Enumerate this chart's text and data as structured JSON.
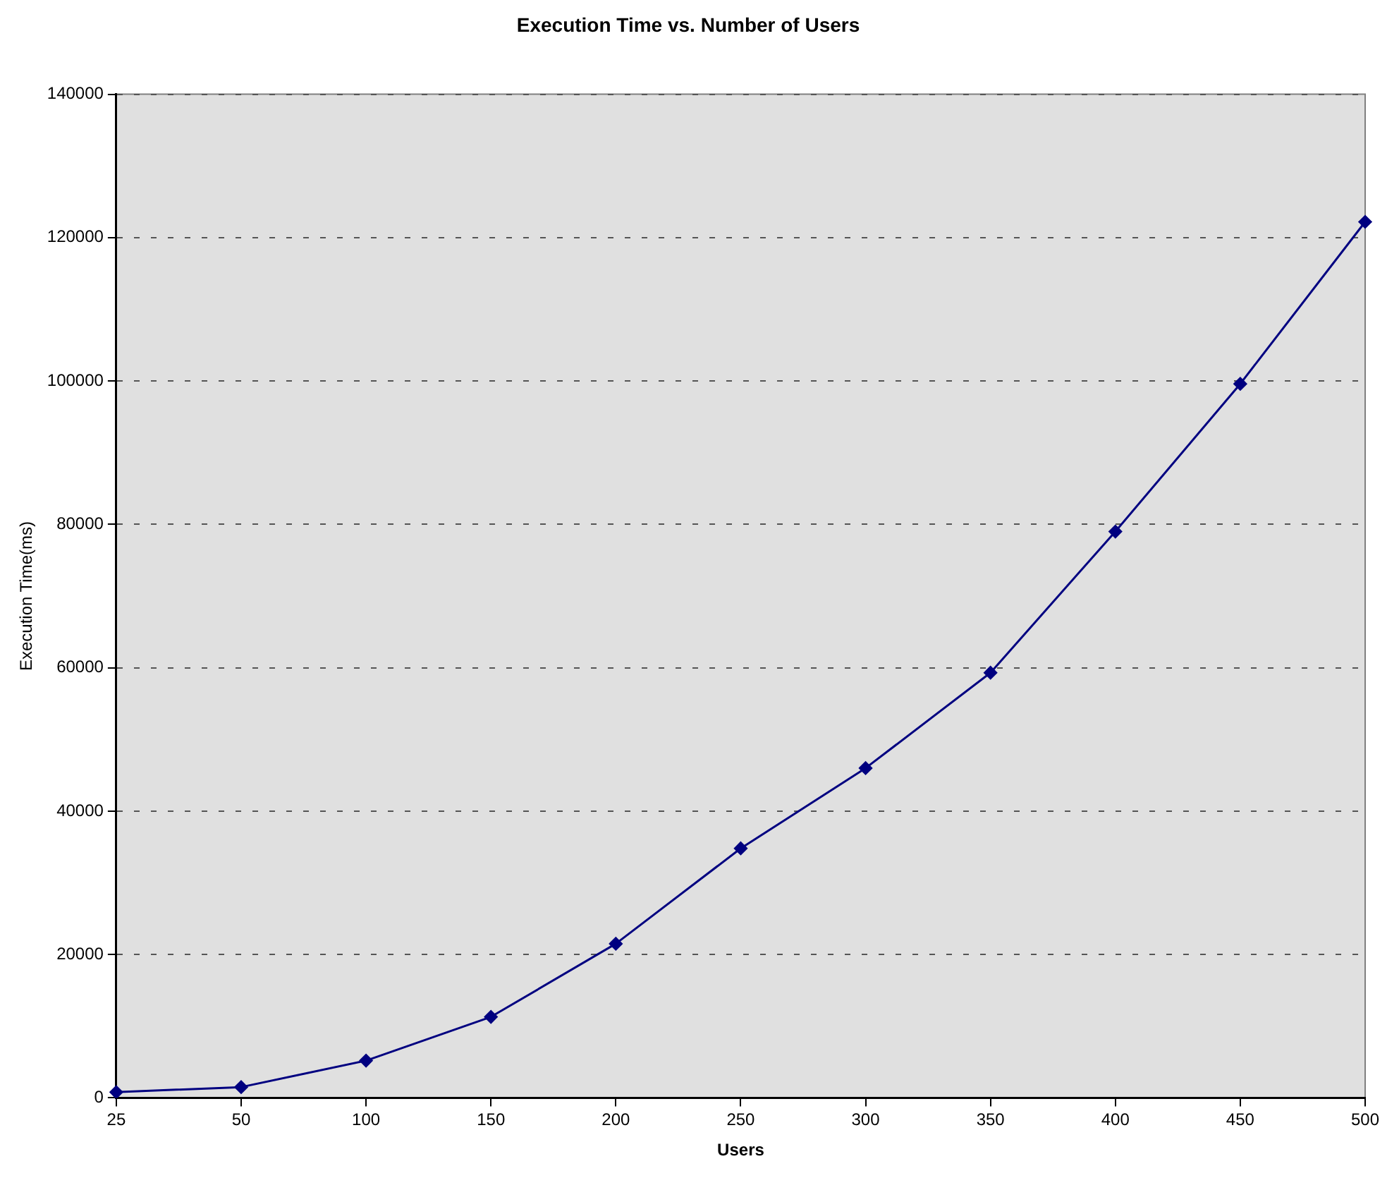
{
  "chart_data": {
    "type": "line",
    "title": "Execution Time vs. Number of Users",
    "xlabel": "Users",
    "ylabel": "Execution Time(ms)",
    "categories": [
      "25",
      "50",
      "100",
      "150",
      "200",
      "250",
      "300",
      "350",
      "400",
      "450",
      "500"
    ],
    "series": [
      {
        "color": "#000080",
        "values": [
          800,
          1500,
          5200,
          11300,
          21500,
          34800,
          46000,
          59300,
          79000,
          99600,
          122200
        ]
      }
    ],
    "ylim": [
      0,
      140000
    ],
    "yticks": [
      0,
      20000,
      40000,
      60000,
      80000,
      100000,
      120000,
      140000
    ],
    "grid": "y",
    "legend": false,
    "marker": "diamond",
    "line_style": "solid"
  }
}
